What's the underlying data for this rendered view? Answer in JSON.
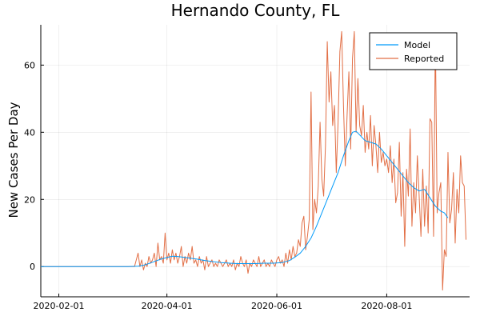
{
  "chart_data": {
    "type": "line",
    "title": "Hernando County, FL",
    "xlabel": "",
    "ylabel": "New Cases Per Day",
    "x_axis": {
      "type": "date",
      "range": [
        "2020-01-22",
        "2020-09-16"
      ],
      "ticks": [
        "2020-02-01",
        "2020-04-01",
        "2020-06-01",
        "2020-08-01"
      ]
    },
    "y_axis": {
      "range": [
        -9,
        72
      ],
      "ticks": [
        0,
        20,
        40,
        60
      ]
    },
    "grid": true,
    "legend_position": "top-right",
    "series": [
      {
        "name": "Model",
        "color": "#009AFA",
        "points": [
          [
            "2020-01-22",
            0
          ],
          [
            "2020-02-15",
            0
          ],
          [
            "2020-03-10",
            0
          ],
          [
            "2020-03-16",
            0.1
          ],
          [
            "2020-03-19",
            0.4
          ],
          [
            "2020-03-22",
            0.9
          ],
          [
            "2020-03-25",
            1.5
          ],
          [
            "2020-03-28",
            2.1
          ],
          [
            "2020-04-01",
            2.7
          ],
          [
            "2020-04-04",
            3.1
          ],
          [
            "2020-04-07",
            3.0
          ],
          [
            "2020-04-10",
            2.8
          ],
          [
            "2020-04-14",
            2.5
          ],
          [
            "2020-04-18",
            2.2
          ],
          [
            "2020-04-22",
            1.8
          ],
          [
            "2020-04-26",
            1.5
          ],
          [
            "2020-05-01",
            1.2
          ],
          [
            "2020-05-06",
            1.0
          ],
          [
            "2020-05-10",
            0.9
          ],
          [
            "2020-05-15",
            0.9
          ],
          [
            "2020-05-20",
            0.9
          ],
          [
            "2020-05-25",
            1.0
          ],
          [
            "2020-05-30",
            1.0
          ],
          [
            "2020-06-04",
            1.2
          ],
          [
            "2020-06-08",
            1.8
          ],
          [
            "2020-06-11",
            2.8
          ],
          [
            "2020-06-14",
            4.0
          ],
          [
            "2020-06-17",
            6.0
          ],
          [
            "2020-06-20",
            8.5
          ],
          [
            "2020-06-23",
            12.0
          ],
          [
            "2020-06-26",
            16.0
          ],
          [
            "2020-06-29",
            20.0
          ],
          [
            "2020-07-02",
            24.0
          ],
          [
            "2020-07-05",
            28.0
          ],
          [
            "2020-07-08",
            33.0
          ],
          [
            "2020-07-11",
            37.5
          ],
          [
            "2020-07-13",
            40.0
          ],
          [
            "2020-07-15",
            40.3
          ],
          [
            "2020-07-17",
            39.2
          ],
          [
            "2020-07-20",
            37.5
          ],
          [
            "2020-07-23",
            37.0
          ],
          [
            "2020-07-26",
            36.5
          ],
          [
            "2020-07-29",
            35.0
          ],
          [
            "2020-08-01",
            33.0
          ],
          [
            "2020-08-04",
            31.0
          ],
          [
            "2020-08-07",
            29.0
          ],
          [
            "2020-08-10",
            27.0
          ],
          [
            "2020-08-13",
            25.0
          ],
          [
            "2020-08-16",
            23.5
          ],
          [
            "2020-08-19",
            22.5
          ],
          [
            "2020-08-22",
            23.0
          ],
          [
            "2020-08-25",
            20.5
          ],
          [
            "2020-08-28",
            18.0
          ],
          [
            "2020-08-31",
            16.5
          ],
          [
            "2020-09-02",
            16.0
          ],
          [
            "2020-09-04",
            14.5
          ]
        ]
      },
      {
        "name": "Reported",
        "color": "#E26F46",
        "points": [
          [
            "2020-01-22",
            0
          ],
          [
            "2020-03-14",
            0
          ],
          [
            "2020-03-16",
            4
          ],
          [
            "2020-03-17",
            0
          ],
          [
            "2020-03-18",
            2
          ],
          [
            "2020-03-19",
            -1
          ],
          [
            "2020-03-20",
            1
          ],
          [
            "2020-03-21",
            0
          ],
          [
            "2020-03-22",
            3
          ],
          [
            "2020-03-23",
            1
          ],
          [
            "2020-03-24",
            2
          ],
          [
            "2020-03-25",
            4
          ],
          [
            "2020-03-26",
            0
          ],
          [
            "2020-03-27",
            7
          ],
          [
            "2020-03-28",
            2
          ],
          [
            "2020-03-29",
            3
          ],
          [
            "2020-03-30",
            1
          ],
          [
            "2020-03-31",
            10
          ],
          [
            "2020-04-01",
            2
          ],
          [
            "2020-04-02",
            4
          ],
          [
            "2020-04-03",
            1
          ],
          [
            "2020-04-04",
            5
          ],
          [
            "2020-04-05",
            2
          ],
          [
            "2020-04-06",
            4
          ],
          [
            "2020-04-07",
            1
          ],
          [
            "2020-04-08",
            3
          ],
          [
            "2020-04-09",
            6
          ],
          [
            "2020-04-10",
            0
          ],
          [
            "2020-04-11",
            3
          ],
          [
            "2020-04-12",
            1
          ],
          [
            "2020-04-13",
            4
          ],
          [
            "2020-04-14",
            2
          ],
          [
            "2020-04-15",
            6
          ],
          [
            "2020-04-16",
            1
          ],
          [
            "2020-04-17",
            2
          ],
          [
            "2020-04-18",
            0
          ],
          [
            "2020-04-19",
            3
          ],
          [
            "2020-04-20",
            1
          ],
          [
            "2020-04-21",
            2
          ],
          [
            "2020-04-22",
            -1
          ],
          [
            "2020-04-23",
            3
          ],
          [
            "2020-04-24",
            0
          ],
          [
            "2020-04-25",
            1
          ],
          [
            "2020-04-26",
            2
          ],
          [
            "2020-04-27",
            0
          ],
          [
            "2020-04-28",
            1
          ],
          [
            "2020-04-29",
            0
          ],
          [
            "2020-04-30",
            2
          ],
          [
            "2020-05-01",
            1
          ],
          [
            "2020-05-02",
            0
          ],
          [
            "2020-05-03",
            1
          ],
          [
            "2020-05-04",
            2
          ],
          [
            "2020-05-05",
            0
          ],
          [
            "2020-05-06",
            1
          ],
          [
            "2020-05-07",
            0
          ],
          [
            "2020-05-08",
            2
          ],
          [
            "2020-05-09",
            -1
          ],
          [
            "2020-05-10",
            1
          ],
          [
            "2020-05-11",
            0
          ],
          [
            "2020-05-12",
            3
          ],
          [
            "2020-05-13",
            1
          ],
          [
            "2020-05-14",
            0
          ],
          [
            "2020-05-15",
            2
          ],
          [
            "2020-05-16",
            -2
          ],
          [
            "2020-05-17",
            1
          ],
          [
            "2020-05-18",
            0
          ],
          [
            "2020-05-19",
            2
          ],
          [
            "2020-05-20",
            1
          ],
          [
            "2020-05-21",
            0
          ],
          [
            "2020-05-22",
            3
          ],
          [
            "2020-05-23",
            0
          ],
          [
            "2020-05-24",
            1
          ],
          [
            "2020-05-25",
            2
          ],
          [
            "2020-05-26",
            0
          ],
          [
            "2020-05-27",
            1
          ],
          [
            "2020-05-28",
            0
          ],
          [
            "2020-05-29",
            2
          ],
          [
            "2020-05-30",
            1
          ],
          [
            "2020-05-31",
            0
          ],
          [
            "2020-06-01",
            2
          ],
          [
            "2020-06-02",
            3
          ],
          [
            "2020-06-03",
            1
          ],
          [
            "2020-06-04",
            2
          ],
          [
            "2020-06-05",
            0
          ],
          [
            "2020-06-06",
            4
          ],
          [
            "2020-06-07",
            1
          ],
          [
            "2020-06-08",
            5
          ],
          [
            "2020-06-09",
            2
          ],
          [
            "2020-06-10",
            6
          ],
          [
            "2020-06-11",
            3
          ],
          [
            "2020-06-12",
            4
          ],
          [
            "2020-06-13",
            8
          ],
          [
            "2020-06-14",
            6
          ],
          [
            "2020-06-15",
            13
          ],
          [
            "2020-06-16",
            15
          ],
          [
            "2020-06-17",
            5
          ],
          [
            "2020-06-18",
            9
          ],
          [
            "2020-06-19",
            14
          ],
          [
            "2020-06-20",
            52
          ],
          [
            "2020-06-21",
            11
          ],
          [
            "2020-06-22",
            20
          ],
          [
            "2020-06-23",
            16
          ],
          [
            "2020-06-24",
            24
          ],
          [
            "2020-06-25",
            43
          ],
          [
            "2020-06-26",
            26
          ],
          [
            "2020-06-27",
            21
          ],
          [
            "2020-06-28",
            36
          ],
          [
            "2020-06-29",
            67
          ],
          [
            "2020-06-30",
            49
          ],
          [
            "2020-07-01",
            58
          ],
          [
            "2020-07-02",
            42
          ],
          [
            "2020-07-03",
            48
          ],
          [
            "2020-07-04",
            28
          ],
          [
            "2020-07-05",
            43
          ],
          [
            "2020-07-06",
            64
          ],
          [
            "2020-07-07",
            70
          ],
          [
            "2020-07-08",
            48
          ],
          [
            "2020-07-09",
            30
          ],
          [
            "2020-07-10",
            45
          ],
          [
            "2020-07-11",
            58
          ],
          [
            "2020-07-12",
            35
          ],
          [
            "2020-07-13",
            62
          ],
          [
            "2020-07-14",
            70
          ],
          [
            "2020-07-15",
            40
          ],
          [
            "2020-07-16",
            56
          ],
          [
            "2020-07-17",
            42
          ],
          [
            "2020-07-18",
            39
          ],
          [
            "2020-07-19",
            48
          ],
          [
            "2020-07-20",
            34
          ],
          [
            "2020-07-21",
            40
          ],
          [
            "2020-07-22",
            35
          ],
          [
            "2020-07-23",
            45
          ],
          [
            "2020-07-24",
            30
          ],
          [
            "2020-07-25",
            42
          ],
          [
            "2020-07-26",
            36
          ],
          [
            "2020-07-27",
            28
          ],
          [
            "2020-07-28",
            40
          ],
          [
            "2020-07-29",
            31
          ],
          [
            "2020-07-30",
            34
          ],
          [
            "2020-07-31",
            30
          ],
          [
            "2020-08-01",
            32
          ],
          [
            "2020-08-02",
            28
          ],
          [
            "2020-08-03",
            36
          ],
          [
            "2020-08-04",
            25
          ],
          [
            "2020-08-05",
            32
          ],
          [
            "2020-08-06",
            19
          ],
          [
            "2020-08-07",
            22
          ],
          [
            "2020-08-08",
            37
          ],
          [
            "2020-08-09",
            15
          ],
          [
            "2020-08-10",
            28
          ],
          [
            "2020-08-11",
            6
          ],
          [
            "2020-08-12",
            29
          ],
          [
            "2020-08-13",
            21
          ],
          [
            "2020-08-14",
            41
          ],
          [
            "2020-08-15",
            12
          ],
          [
            "2020-08-16",
            25
          ],
          [
            "2020-08-17",
            16
          ],
          [
            "2020-08-18",
            33
          ],
          [
            "2020-08-19",
            21
          ],
          [
            "2020-08-20",
            9
          ],
          [
            "2020-08-21",
            29
          ],
          [
            "2020-08-22",
            12
          ],
          [
            "2020-08-23",
            24
          ],
          [
            "2020-08-24",
            10
          ],
          [
            "2020-08-25",
            44
          ],
          [
            "2020-08-26",
            43
          ],
          [
            "2020-08-27",
            9
          ],
          [
            "2020-08-28",
            69
          ],
          [
            "2020-08-29",
            16
          ],
          [
            "2020-08-30",
            22
          ],
          [
            "2020-08-31",
            25
          ],
          [
            "2020-09-01",
            -7
          ],
          [
            "2020-09-02",
            5
          ],
          [
            "2020-09-03",
            3
          ],
          [
            "2020-09-04",
            34
          ],
          [
            "2020-09-05",
            13
          ],
          [
            "2020-09-06",
            17
          ],
          [
            "2020-09-07",
            28
          ],
          [
            "2020-09-08",
            7
          ],
          [
            "2020-09-09",
            23
          ],
          [
            "2020-09-10",
            16
          ],
          [
            "2020-09-11",
            33
          ],
          [
            "2020-09-12",
            25
          ],
          [
            "2020-09-13",
            24
          ],
          [
            "2020-09-14",
            8
          ]
        ]
      }
    ]
  }
}
